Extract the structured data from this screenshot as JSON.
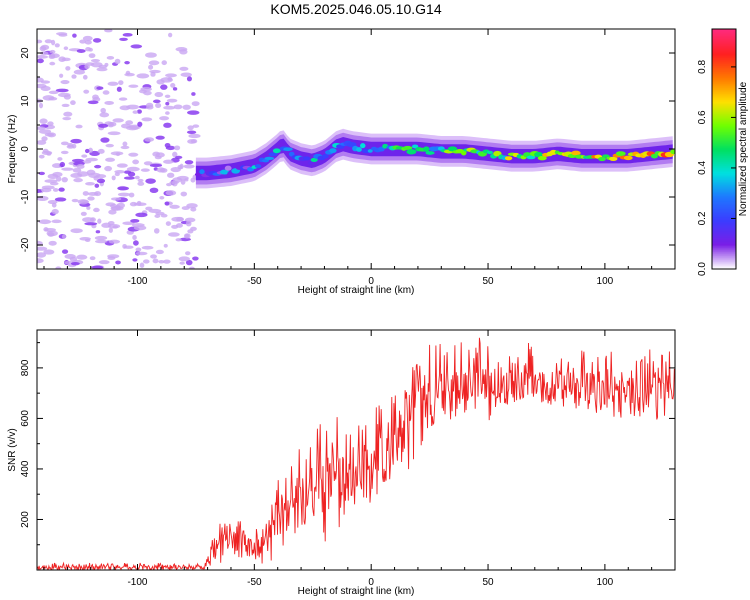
{
  "figure_title": "KOM5.2025.046.05.10.G14",
  "colors": {
    "snr_line": "#ee2222",
    "spectrum_noise": "#c9a6f2",
    "colormap": [
      "#ffffff",
      "#7a1ee6",
      "#3c3cff",
      "#1e78ff",
      "#00e0e0",
      "#00e060",
      "#70ff00",
      "#ffe000",
      "#ff7800",
      "#ff2020",
      "#ff2a7a"
    ]
  },
  "chart_data": [
    {
      "type": "heatmap",
      "name": "spectrogram",
      "xlabel": "Height of straight line (km)",
      "ylabel": "Frequency (Hz)",
      "xlim": [
        -143,
        130
      ],
      "ylim": [
        -25,
        25
      ],
      "xticks": [
        -100,
        -50,
        0,
        50,
        100
      ],
      "yticks": [
        -20,
        -10,
        0,
        10,
        20
      ],
      "noise_region_x": [
        -143,
        -75
      ],
      "signal_start_x": -75,
      "ridge_center": {
        "x": [
          -75,
          -70,
          -60,
          -50,
          -45,
          -40,
          -38,
          -35,
          -30,
          -25,
          -20,
          -15,
          -12,
          -8,
          0,
          10,
          20,
          30,
          40,
          50,
          60,
          70,
          80,
          90,
          100,
          110,
          120,
          130
        ],
        "y": [
          -5,
          -5,
          -4.5,
          -3.5,
          -2,
          0,
          1,
          -1,
          -2,
          -2.5,
          -1.5,
          0.5,
          1,
          0.5,
          0,
          0,
          0,
          -0.5,
          -0.5,
          -1,
          -1.5,
          -1.5,
          -1,
          -1.5,
          -1.5,
          -1.5,
          -1,
          -0.5
        ]
      },
      "colorbar": {
        "label": "Normalized spectral amplitude",
        "range": [
          0,
          0.95
        ],
        "ticks": [
          0.0,
          0.2,
          0.4,
          0.6,
          0.8
        ]
      }
    },
    {
      "type": "line",
      "name": "snr",
      "xlabel": "Height of straight line (km)",
      "ylabel": "SNR (v/v)",
      "xlim": [
        -143,
        130
      ],
      "ylim": [
        0,
        950
      ],
      "xticks": [
        -100,
        -50,
        0,
        50,
        100
      ],
      "yticks": [
        200,
        400,
        600,
        800
      ],
      "envelope": {
        "x": [
          -143,
          -72,
          -68,
          -62,
          -55,
          -50,
          -45,
          -40,
          -35,
          -30,
          -25,
          -20,
          -15,
          -10,
          -5,
          0,
          5,
          10,
          15,
          20,
          25,
          30,
          40,
          50,
          60,
          70,
          80,
          90,
          100,
          110,
          120,
          130
        ],
        "mean": [
          10,
          10,
          50,
          130,
          100,
          80,
          120,
          200,
          250,
          270,
          300,
          330,
          350,
          380,
          390,
          420,
          450,
          500,
          560,
          640,
          680,
          700,
          730,
          740,
          740,
          740,
          720,
          730,
          720,
          720,
          720,
          720
        ],
        "spread": [
          15,
          15,
          60,
          110,
          80,
          70,
          110,
          160,
          200,
          220,
          250,
          260,
          240,
          220,
          200,
          190,
          190,
          200,
          220,
          220,
          200,
          180,
          160,
          150,
          140,
          130,
          130,
          130,
          130,
          130,
          130,
          140
        ]
      }
    }
  ]
}
